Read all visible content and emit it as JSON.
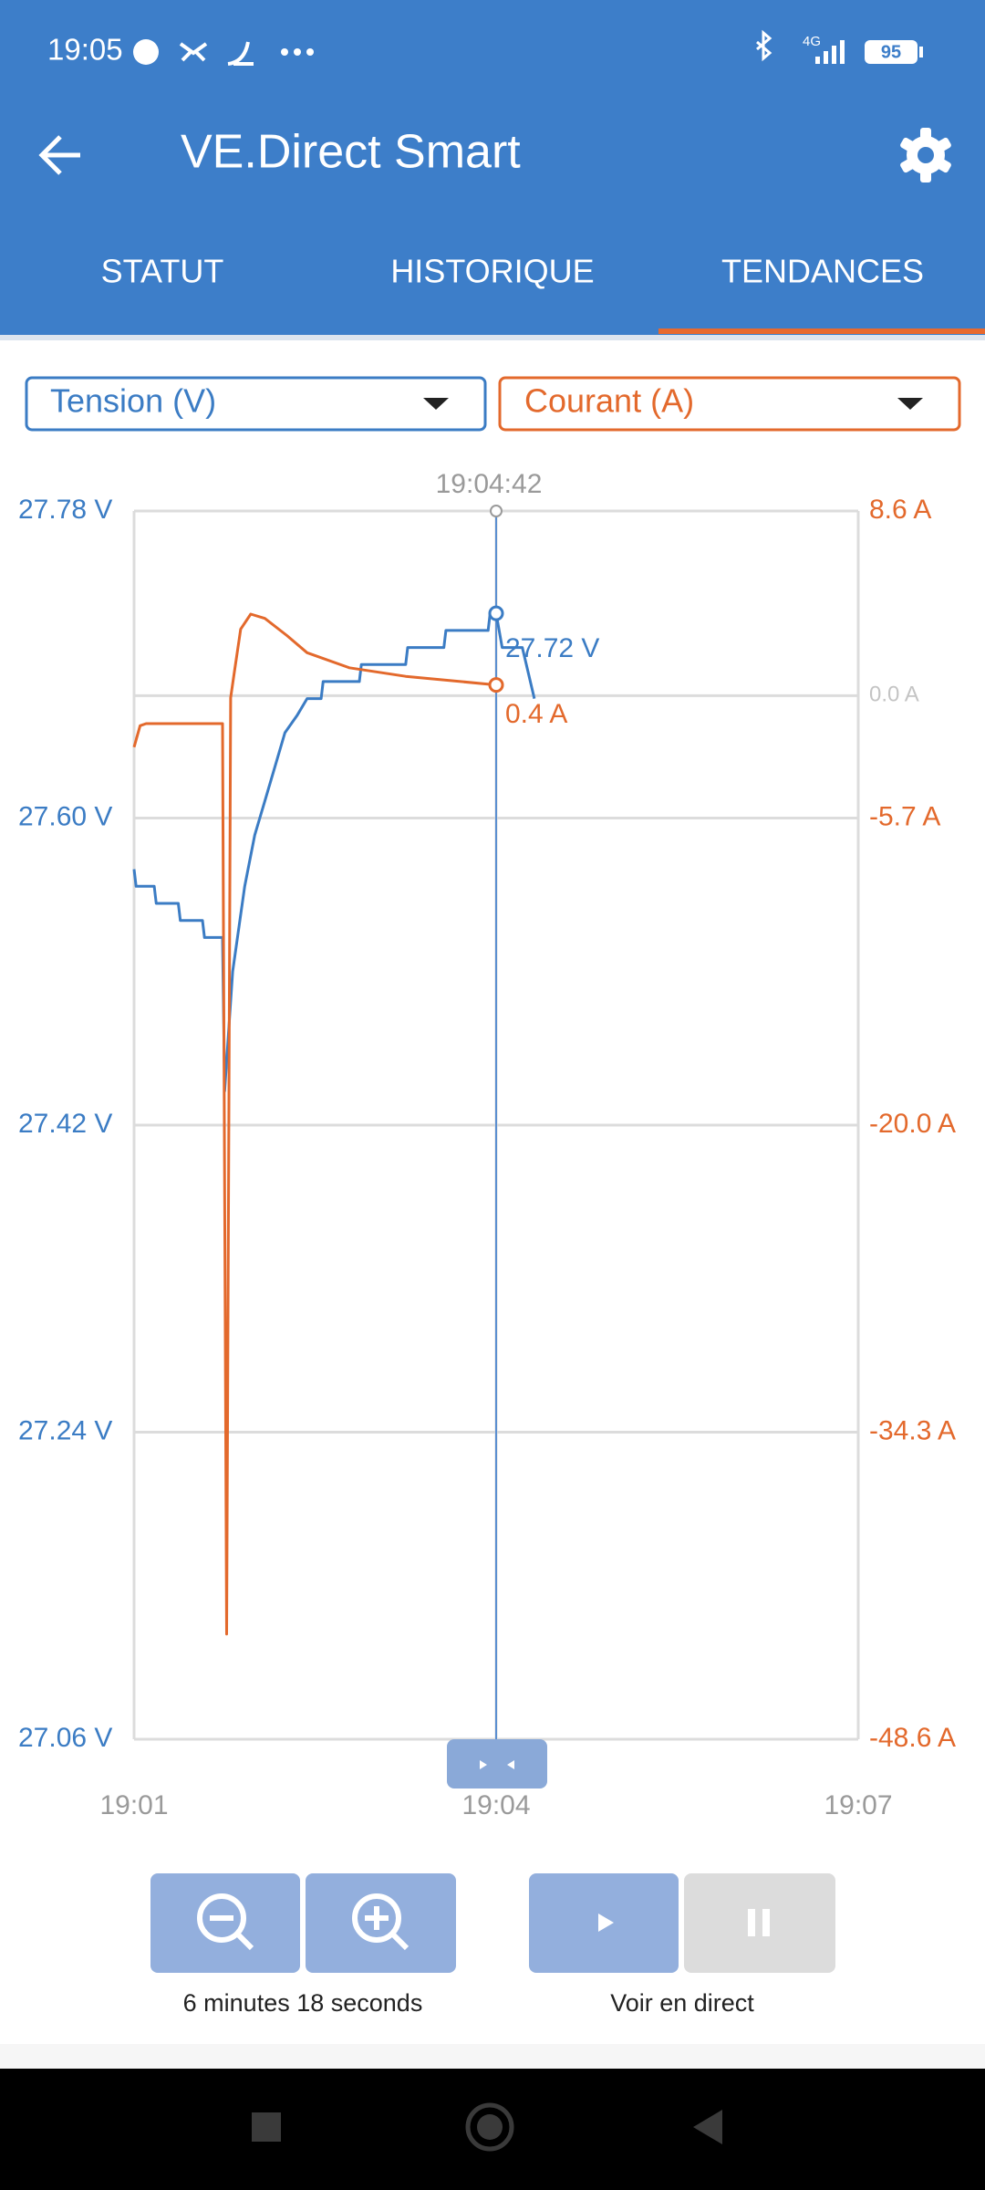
{
  "status_bar": {
    "time": "19:05",
    "network": "4G",
    "battery": "95"
  },
  "app_bar": {
    "title": "VE.Direct Smart"
  },
  "tabs": [
    "STATUT",
    "HISTORIQUE",
    "TENDANCES"
  ],
  "chart_data": {
    "type": "line",
    "xlim": [
      "19:01",
      "19:07"
    ],
    "xticks": [
      "19:01",
      "19:04",
      "19:07"
    ],
    "ylim": [
      27.06,
      27.78
    ],
    "yticks": [
      {
        "value": 27.06,
        "label": "27.06 V"
      },
      {
        "value": 27.24,
        "label": "27.24 V"
      },
      {
        "value": 27.42,
        "label": "27.42 V"
      },
      {
        "value": 27.6,
        "label": "27.60 V"
      },
      {
        "value": 27.78,
        "label": "27.78 V"
      }
    ],
    "y2lim": [
      -48.6,
      8.6
    ],
    "y2ticks": [
      {
        "value": -48.6,
        "label": "-48.6 A"
      },
      {
        "value": -34.3,
        "label": "-34.3 A"
      },
      {
        "value": -20.0,
        "label": "-20.0 A"
      },
      {
        "value": -5.7,
        "label": "-5.7 A"
      },
      {
        "value": 0.0,
        "label": "0.0 A"
      },
      {
        "value": 8.6,
        "label": "8.6 A"
      }
    ],
    "grid": true,
    "series": [
      {
        "name": "Tension (V)",
        "color": "#3b7cc4",
        "x": [
          "19:01:00",
          "19:01:01",
          "19:01:10",
          "19:01:11",
          "19:01:22",
          "19:01:23",
          "19:01:34",
          "19:01:35",
          "19:01:44",
          "19:01:45",
          "19:01:49",
          "19:01:55",
          "19:02:00",
          "19:02:05",
          "19:02:10",
          "19:02:15",
          "19:02:21",
          "19:02:26",
          "19:02:33",
          "19:02:34",
          "19:02:52",
          "19:02:53",
          "19:03:15",
          "19:03:16",
          "19:03:34",
          "19:03:35",
          "19:03:56",
          "19:03:57",
          "19:04:00",
          "19:04:03",
          "19:04:13",
          "19:04:19"
        ],
        "values": [
          27.57,
          27.56,
          27.56,
          27.55,
          27.55,
          27.54,
          27.54,
          27.53,
          27.53,
          27.44,
          27.51,
          27.56,
          27.59,
          27.61,
          27.63,
          27.65,
          27.66,
          27.67,
          27.67,
          27.68,
          27.68,
          27.69,
          27.69,
          27.7,
          27.7,
          27.71,
          27.71,
          27.72,
          27.72,
          27.7,
          27.7,
          27.67
        ]
      },
      {
        "name": "Courant (A)",
        "color": "#e3692c",
        "axis": "y2",
        "x": [
          "19:01:00",
          "19:01:03",
          "19:01:06",
          "19:01:44",
          "19:01:46",
          "19:01:48",
          "19:01:50",
          "19:01:53",
          "19:01:58",
          "19:02:05",
          "19:02:16",
          "19:02:26",
          "19:02:47",
          "19:03:15",
          "19:04:00"
        ],
        "values": [
          -2.4,
          -1.4,
          -1.3,
          -1.3,
          -43.7,
          -0.1,
          1.2,
          3.1,
          3.8,
          3.6,
          2.8,
          2.0,
          1.3,
          0.9,
          0.5
        ]
      }
    ],
    "cursor": {
      "time": "19:04:42",
      "readouts": [
        "27.72 V",
        "0.4 A"
      ]
    }
  },
  "controls": {
    "zoom_label": "6 minutes 18 seconds",
    "live_label": "Voir en direct"
  }
}
